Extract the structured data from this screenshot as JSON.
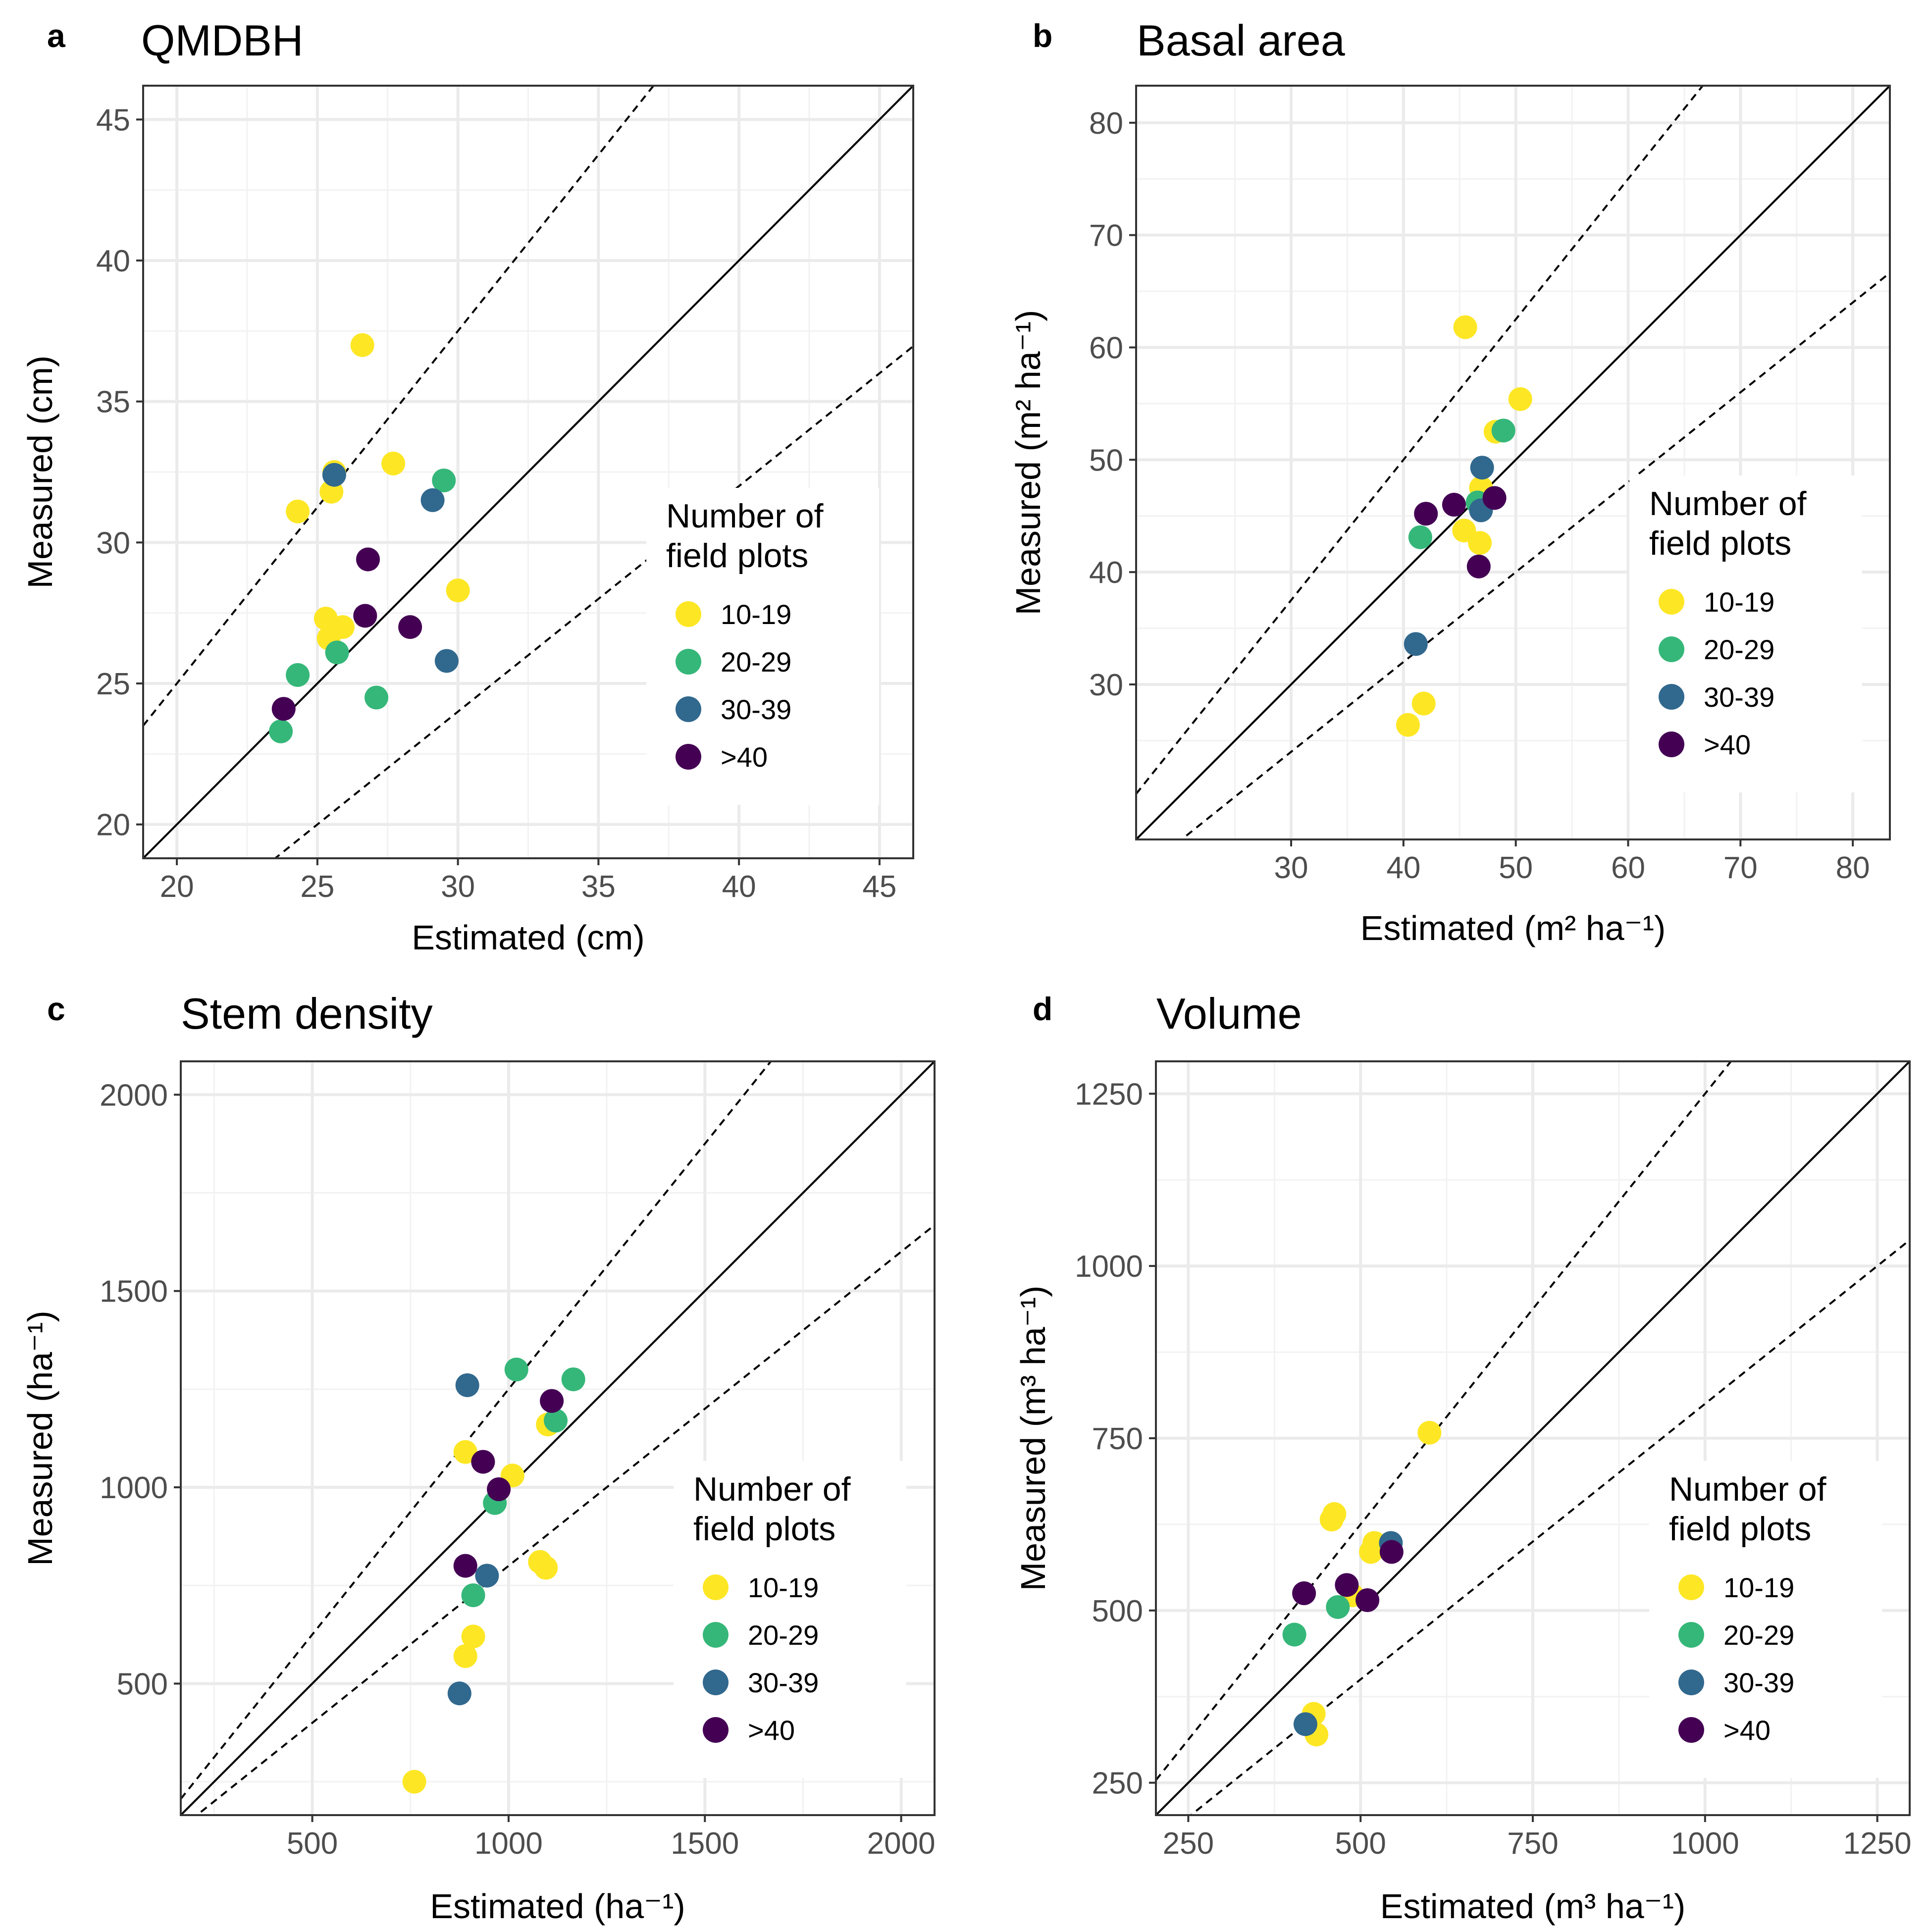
{
  "legend_colors": {
    "10-19": "#fde725",
    "20-29": "#35b779",
    "30-39": "#31688e",
    ">40": "#440154"
  },
  "chart_data": [
    {
      "type": "scatter",
      "panel_letter": "a",
      "title": "QMDBH",
      "xlabel": "Estimated (cm)",
      "ylabel": "Measured (cm)",
      "xlim": [
        18.8,
        46.2
      ],
      "ylim": [
        18.8,
        46.2
      ],
      "xticks": [
        20,
        25,
        30,
        35,
        40,
        45
      ],
      "yticks": [
        20,
        25,
        30,
        35,
        40,
        45
      ],
      "xtick_labels": [
        "20",
        "25",
        "30",
        "35",
        "40",
        "45"
      ],
      "ytick_labels": [
        "20",
        "25",
        "30",
        "35",
        "40",
        "45"
      ],
      "reference_lines": {
        "one_to_one": 1.0,
        "upper": 1.25,
        "lower": 0.8
      },
      "legend": {
        "title": [
          "Number of",
          "field plots"
        ],
        "entries": [
          "10-19",
          "20-29",
          "30-39",
          ">40"
        ],
        "position": "right"
      },
      "series": [
        {
          "name": "10-19",
          "points": [
            [
              26.6,
              37.0
            ],
            [
              27.7,
              32.8
            ],
            [
              24.3,
              31.1
            ],
            [
              25.5,
              31.8
            ],
            [
              25.6,
              32.5
            ],
            [
              30.0,
              28.3
            ],
            [
              25.3,
              27.3
            ],
            [
              25.9,
              27.0
            ],
            [
              25.4,
              26.6
            ]
          ]
        },
        {
          "name": "20-29",
          "points": [
            [
              29.5,
              32.2
            ],
            [
              25.7,
              26.1
            ],
            [
              24.3,
              25.3
            ],
            [
              27.1,
              24.5
            ],
            [
              23.7,
              23.3
            ]
          ]
        },
        {
          "name": "30-39",
          "points": [
            [
              25.6,
              32.4
            ],
            [
              29.1,
              31.5
            ],
            [
              29.6,
              25.8
            ]
          ]
        },
        {
          "name": ">40",
          "points": [
            [
              26.8,
              29.4
            ],
            [
              26.7,
              27.4
            ],
            [
              28.3,
              27.0
            ],
            [
              23.8,
              24.1
            ]
          ]
        }
      ]
    },
    {
      "type": "scatter",
      "panel_letter": "b",
      "title": "Basal area",
      "xlabel": "Estimated (m² ha⁻¹)",
      "ylabel": "Measured (m² ha⁻¹)",
      "xlim": [
        16.2,
        83.3
      ],
      "ylim": [
        16.2,
        83.3
      ],
      "xticks": [
        30,
        40,
        50,
        60,
        70,
        80
      ],
      "yticks": [
        30,
        40,
        50,
        60,
        70,
        80
      ],
      "xtick_labels": [
        "30",
        "40",
        "50",
        "60",
        "70",
        "80"
      ],
      "ytick_labels": [
        "30",
        "40",
        "50",
        "60",
        "70",
        "80"
      ],
      "reference_lines": {
        "one_to_one": 1.0,
        "upper": 1.25,
        "lower": 0.8
      },
      "legend": {
        "title": [
          "Number of",
          "field plots"
        ],
        "entries": [
          "10-19",
          "20-29",
          "30-39",
          ">40"
        ],
        "position": "right"
      },
      "series": [
        {
          "name": "10-19",
          "points": [
            [
              45.5,
              61.8
            ],
            [
              50.4,
              55.4
            ],
            [
              48.2,
              52.5
            ],
            [
              46.9,
              47.5
            ],
            [
              45.4,
              43.7
            ],
            [
              46.8,
              42.6
            ],
            [
              41.8,
              28.3
            ],
            [
              40.4,
              26.4
            ]
          ]
        },
        {
          "name": "20-29",
          "points": [
            [
              48.9,
              52.6
            ],
            [
              41.5,
              43.1
            ],
            [
              46.6,
              46.2
            ]
          ]
        },
        {
          "name": "30-39",
          "points": [
            [
              47.0,
              49.3
            ],
            [
              46.9,
              45.5
            ],
            [
              41.1,
              33.6
            ]
          ]
        },
        {
          "name": ">40",
          "points": [
            [
              42.0,
              45.2
            ],
            [
              44.5,
              46.0
            ],
            [
              48.1,
              46.6
            ],
            [
              46.7,
              40.5
            ]
          ]
        }
      ]
    },
    {
      "type": "scatter",
      "panel_letter": "c",
      "title": "Stem density",
      "xlabel": "Estimated (ha⁻¹)",
      "ylabel": "Measured (ha⁻¹)",
      "xlim": [
        165,
        2085
      ],
      "ylim": [
        165,
        2085
      ],
      "xticks": [
        500,
        1000,
        1500,
        2000
      ],
      "yticks": [
        500,
        1000,
        1500,
        2000
      ],
      "xtick_labels": [
        "500",
        "1000",
        "1500",
        "2000"
      ],
      "ytick_labels": [
        "500",
        "1000",
        "1500",
        "2000"
      ],
      "reference_lines": {
        "one_to_one": 1.0,
        "upper": 1.25,
        "lower": 0.8
      },
      "legend": {
        "title": [
          "Number of",
          "field plots"
        ],
        "entries": [
          "10-19",
          "20-29",
          "30-39",
          ">40"
        ],
        "position": "right"
      },
      "series": [
        {
          "name": "10-19",
          "points": [
            [
              890,
              1090
            ],
            [
              1010,
              1030
            ],
            [
              1100,
              1160
            ],
            [
              1080,
              810
            ],
            [
              1095,
              795
            ],
            [
              910,
              620
            ],
            [
              890,
              570
            ],
            [
              760,
              250
            ]
          ]
        },
        {
          "name": "20-29",
          "points": [
            [
              1020,
              1300
            ],
            [
              1165,
              1275
            ],
            [
              1120,
              1170
            ],
            [
              965,
              960
            ],
            [
              910,
              725
            ]
          ]
        },
        {
          "name": "30-39",
          "points": [
            [
              895,
              1260
            ],
            [
              945,
              775
            ],
            [
              875,
              475
            ]
          ]
        },
        {
          "name": ">40",
          "points": [
            [
              1110,
              1220
            ],
            [
              935,
              1065
            ],
            [
              975,
              995
            ],
            [
              890,
              800
            ]
          ]
        }
      ]
    },
    {
      "type": "scatter",
      "panel_letter": "d",
      "title": "Volume",
      "xlabel": "Estimated (m³ ha⁻¹)",
      "ylabel": "Measured (m³ ha⁻¹)",
      "xlim": [
        203,
        1297
      ],
      "ylim": [
        203,
        1297
      ],
      "xticks": [
        250,
        500,
        750,
        1000,
        1250
      ],
      "yticks": [
        250,
        500,
        750,
        1000,
        1250
      ],
      "xtick_labels": [
        "250",
        "500",
        "750",
        "1000",
        "1250"
      ],
      "ytick_labels": [
        "250",
        "500",
        "750",
        "1000",
        "1250"
      ],
      "reference_lines": {
        "one_to_one": 1.0,
        "upper": 1.25,
        "lower": 0.8
      },
      "legend": {
        "title": [
          "Number of",
          "field plots"
        ],
        "entries": [
          "10-19",
          "20-29",
          "30-39",
          ">40"
        ],
        "position": "right"
      },
      "series": [
        {
          "name": "10-19",
          "points": [
            [
              600,
              758
            ],
            [
              462,
              640
            ],
            [
              458,
              632
            ],
            [
              520,
              598
            ],
            [
              515,
              585
            ],
            [
              488,
              522
            ],
            [
              432,
              350
            ],
            [
              436,
              320
            ]
          ]
        },
        {
          "name": "20-29",
          "points": [
            [
              404,
              465
            ],
            [
              467,
              505
            ]
          ]
        },
        {
          "name": "30-39",
          "points": [
            [
              544,
              598
            ],
            [
              420,
              335
            ]
          ]
        },
        {
          "name": ">40",
          "points": [
            [
              418,
              525
            ],
            [
              480,
              537
            ],
            [
              545,
              585
            ],
            [
              510,
              515
            ]
          ]
        }
      ]
    }
  ]
}
